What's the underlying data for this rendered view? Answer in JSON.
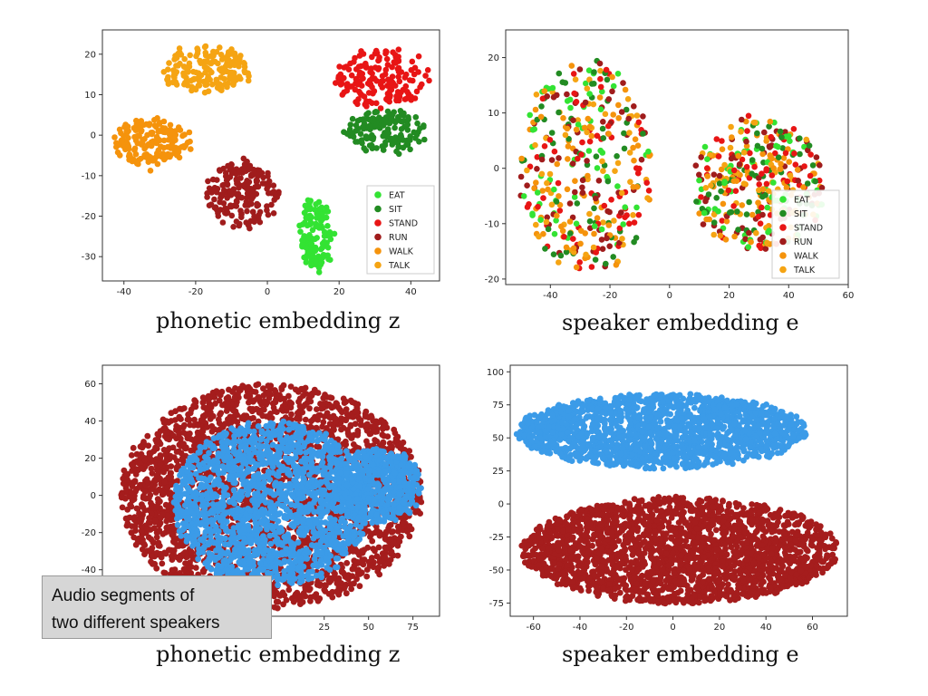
{
  "captions": {
    "top_left": "phonetic embedding z",
    "top_right": "speaker embedding e",
    "bottom_left": "phonetic embedding z",
    "bottom_right": "speaker embedding e"
  },
  "note": {
    "line1": "Audio segments of",
    "line2": "two different speakers"
  },
  "colors": {
    "EAT": "#33e333",
    "SIT": "#228b22",
    "STAND": "#e81515",
    "RUN": "#a01c1c",
    "WALK": "#f5930c",
    "TALK": "#f5a413",
    "speaker_a": "#a51d1d",
    "speaker_b": "#3b9be8"
  },
  "chart_data": [
    {
      "id": "tl",
      "type": "scatter",
      "xlim": [
        -46,
        48
      ],
      "ylim": [
        -36,
        26
      ],
      "xticks": [
        -40,
        -20,
        0,
        20,
        40
      ],
      "yticks": [
        -30,
        -20,
        -10,
        0,
        10,
        20
      ],
      "legend": {
        "position": "lower-right",
        "entries": [
          "EAT",
          "SIT",
          "STAND",
          "RUN",
          "WALK",
          "TALK"
        ]
      },
      "clusters": [
        {
          "series": "TALK",
          "cx": -17,
          "cy": 16,
          "rx": 12,
          "ry": 5.5,
          "n": 170
        },
        {
          "series": "WALK",
          "cx": -32,
          "cy": -2,
          "rx": 11,
          "ry": 6,
          "n": 170
        },
        {
          "series": "RUN",
          "cx": -7,
          "cy": -14.5,
          "rx": 10,
          "ry": 8,
          "n": 180
        },
        {
          "series": "STAND",
          "cx": 32,
          "cy": 14,
          "rx": 13,
          "ry": 7.5,
          "n": 170
        },
        {
          "series": "SIT",
          "cx": 33,
          "cy": 1,
          "rx": 11,
          "ry": 5,
          "n": 150
        },
        {
          "series": "EAT",
          "cx": 13.5,
          "cy": -25,
          "rx": 4.5,
          "ry": 9,
          "n": 130
        }
      ]
    },
    {
      "id": "tr",
      "type": "scatter",
      "xlim": [
        -55,
        60
      ],
      "ylim": [
        -21,
        25
      ],
      "xticks": [
        -40,
        -20,
        0,
        20,
        40,
        60
      ],
      "yticks": [
        -20,
        -10,
        0,
        10,
        20
      ],
      "legend": {
        "position": "lower-right",
        "entries": [
          "EAT",
          "SIT",
          "STAND",
          "RUN",
          "WALK",
          "TALK"
        ]
      },
      "clusters": [
        {
          "series": "mixed",
          "cx": -28,
          "cy": 0,
          "rx": 22,
          "ry": 19,
          "n": 380
        },
        {
          "series": "mixed",
          "cx": 30,
          "cy": -3,
          "rx": 22,
          "ry": 12,
          "n": 380
        }
      ]
    },
    {
      "id": "bl",
      "type": "scatter",
      "xlim": [
        -100,
        90
      ],
      "ylim": [
        -65,
        70
      ],
      "xticks": [
        25,
        50,
        75
      ],
      "yticks": [
        -40,
        -20,
        0,
        20,
        40,
        60
      ],
      "clusters": [
        {
          "series": "speaker_a",
          "cx": -5,
          "cy": 0,
          "rx": 85,
          "ry": 60,
          "n": 2600
        },
        {
          "series": "speaker_b",
          "cx": -5,
          "cy": -5,
          "rx": 55,
          "ry": 45,
          "n": 1600
        },
        {
          "series": "speaker_b",
          "cx": 55,
          "cy": 5,
          "rx": 25,
          "ry": 20,
          "n": 500
        }
      ]
    },
    {
      "id": "br",
      "type": "scatter",
      "xlim": [
        -70,
        75
      ],
      "ylim": [
        -85,
        105
      ],
      "xticks": [
        -60,
        -40,
        -20,
        0,
        20,
        40,
        60
      ],
      "yticks": [
        -75,
        -50,
        -25,
        0,
        25,
        50,
        75,
        100
      ],
      "clusters": [
        {
          "series": "speaker_b",
          "cx": -5,
          "cy": 55,
          "rx": 62,
          "ry": 28,
          "n": 1700
        },
        {
          "series": "speaker_a",
          "cx": 3,
          "cy": -35,
          "rx": 68,
          "ry": 40,
          "n": 2200
        }
      ]
    }
  ]
}
